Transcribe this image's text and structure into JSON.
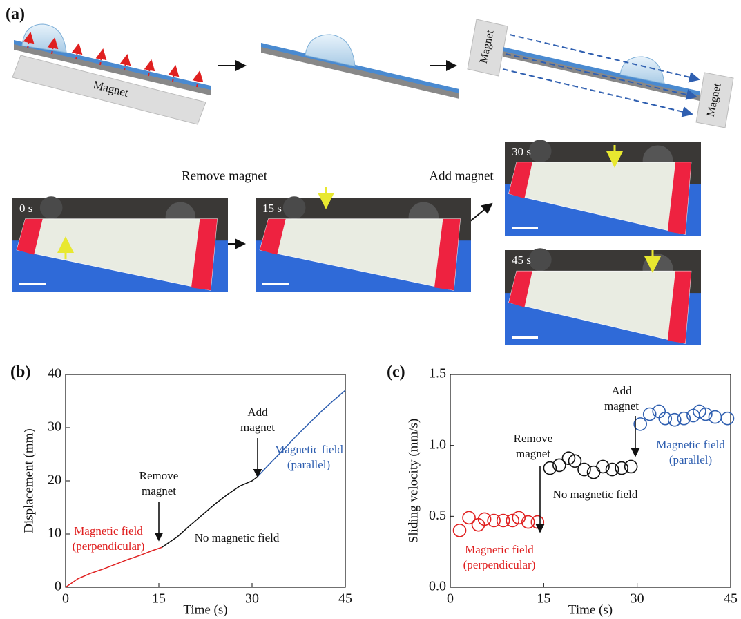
{
  "panel_a": {
    "label": "(a)",
    "magnet_labels": [
      "Magnet",
      "Magnet",
      "Magnet"
    ],
    "step_labels": [
      "Remove magnet",
      "Add magnet"
    ],
    "photo_times": [
      "0 s",
      "15 s",
      "30 s",
      "45 s"
    ]
  },
  "chart_data": [
    {
      "type": "line",
      "panel": "(b)",
      "xlabel": "Time (s)",
      "ylabel": "Displacement (mm)",
      "xlim": [
        0,
        45
      ],
      "ylim": [
        0,
        40
      ],
      "xticks": [
        0,
        15,
        30,
        45
      ],
      "yticks": [
        0,
        10,
        20,
        30,
        40
      ],
      "series": [
        {
          "color": "#e02020",
          "x": [
            0,
            1,
            2,
            4,
            6,
            8,
            10,
            12,
            14,
            15.5
          ],
          "values": [
            0,
            0.8,
            1.6,
            2.6,
            3.4,
            4.3,
            5.2,
            6.0,
            6.9,
            7.5
          ]
        },
        {
          "color": "#111111",
          "x": [
            15.5,
            18,
            20,
            22,
            24,
            26,
            28,
            30,
            30.8
          ],
          "values": [
            7.5,
            9.5,
            11.6,
            13.6,
            15.6,
            17.4,
            19.0,
            20.0,
            20.7
          ]
        },
        {
          "color": "#2f5fb0",
          "x": [
            30.8,
            33,
            35,
            37,
            39,
            41,
            43,
            45
          ],
          "values": [
            20.7,
            23.4,
            25.8,
            28.3,
            30.6,
            32.9,
            35.0,
            37.0
          ]
        }
      ],
      "annotations": [
        {
          "lines": [
            "Magnetic field",
            "(perpendicular)"
          ],
          "color": "#e02020"
        },
        {
          "lines": [
            "Remove",
            "magnet"
          ],
          "color": "#111111"
        },
        {
          "lines": [
            "No magnetic field"
          ],
          "color": "#111111"
        },
        {
          "lines": [
            "Add",
            "magnet"
          ],
          "color": "#111111"
        },
        {
          "lines": [
            "Magnetic field",
            "(parallel)"
          ],
          "color": "#2f5fb0"
        }
      ]
    },
    {
      "type": "scatter",
      "panel": "(c)",
      "xlabel": "Time (s)",
      "ylabel": "Sliding velocity (mm/s)",
      "xlim": [
        0,
        45
      ],
      "ylim": [
        0,
        1.5
      ],
      "xticks": [
        0,
        15,
        30,
        45
      ],
      "yticks": [
        {
          "value": 0,
          "label": "0.0"
        },
        {
          "value": 0.5,
          "label": "0.5"
        },
        {
          "value": 1,
          "label": "1.0"
        },
        {
          "value": 1.5,
          "label": "1.5"
        }
      ],
      "series": [
        {
          "color": "#e02020",
          "x": [
            1.5,
            3,
            4.5,
            5.5,
            7,
            8.5,
            10,
            11,
            12.5,
            14
          ],
          "values": [
            0.4,
            0.49,
            0.44,
            0.48,
            0.47,
            0.47,
            0.47,
            0.49,
            0.46,
            0.46
          ]
        },
        {
          "color": "#111111",
          "x": [
            16,
            17.5,
            19,
            20,
            21.5,
            23,
            24.5,
            26,
            27.5,
            29
          ],
          "values": [
            0.84,
            0.86,
            0.91,
            0.89,
            0.83,
            0.81,
            0.85,
            0.83,
            0.84,
            0.85
          ]
        },
        {
          "color": "#2f5fb0",
          "x": [
            30.5,
            32,
            33.5,
            34.5,
            36,
            37.5,
            39,
            40,
            41,
            42.5,
            44.5
          ],
          "values": [
            1.15,
            1.22,
            1.24,
            1.19,
            1.18,
            1.19,
            1.21,
            1.24,
            1.22,
            1.2,
            1.19
          ]
        }
      ],
      "annotations": [
        {
          "lines": [
            "Add",
            "magnet"
          ],
          "color": "#111111"
        },
        {
          "lines": [
            "Remove",
            "magnet"
          ],
          "color": "#111111"
        },
        {
          "lines": [
            "No magnetic field"
          ],
          "color": "#111111"
        },
        {
          "lines": [
            "Magnetic field",
            "(parallel)"
          ],
          "color": "#2f5fb0"
        },
        {
          "lines": [
            "Magnetic field",
            "(perpendicular)"
          ],
          "color": "#e02020"
        }
      ]
    }
  ]
}
